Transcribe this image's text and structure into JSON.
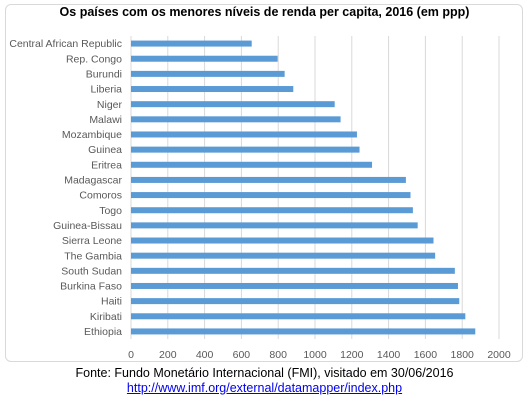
{
  "source": {
    "line1": "Fonte: Fundo Monetário Internacional (FMI), visitado em 30/06/2016",
    "link": "http://www.imf.org/external/datamapper/index.php"
  },
  "colors": {
    "bar": "#5b9bd5",
    "grid": "#d9d9d9",
    "axis_text": "#595959"
  },
  "chart_data": {
    "type": "bar",
    "orientation": "horizontal",
    "title": "Os países com os menores níveis de renda per capita, 2016 (em ppp)",
    "xlabel": "",
    "ylabel": "",
    "xlim": [
      0,
      2000
    ],
    "x_ticks": [
      "0",
      "200",
      "400",
      "600",
      "800",
      "1000",
      "1200",
      "1400",
      "1600",
      "1800",
      "2000"
    ],
    "grid": true,
    "legend": "none",
    "categories": [
      "Central African Republic",
      "Rep. Congo",
      "Burundi",
      "Liberia",
      "Niger",
      "Malawi",
      "Mozambique",
      "Guinea",
      "Eritrea",
      "Madagascar",
      "Comoros",
      "Togo",
      "Guinea-Bissau",
      "Sierra Leone",
      "The Gambia",
      "South Sudan",
      "Burkina Faso",
      "Haiti",
      "Kiribati",
      "Ethiopia"
    ],
    "values": [
      656,
      797,
      835,
      882,
      1107,
      1139,
      1228,
      1242,
      1310,
      1494,
      1519,
      1532,
      1558,
      1644,
      1653,
      1760,
      1777,
      1784,
      1817,
      1871
    ]
  }
}
